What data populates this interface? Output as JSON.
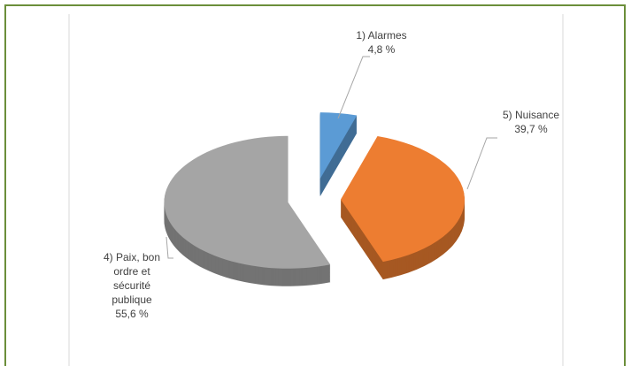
{
  "chart_data": {
    "type": "pie",
    "categories": [
      "1) Alarmes",
      "5) Nuisance",
      "4) Paix, bon ordre et sécurité publique"
    ],
    "values": [
      4.8,
      39.7,
      55.6
    ],
    "value_labels": [
      "4,8 %",
      "39,7 %",
      "55,6 %"
    ],
    "colors": [
      "#5b9bd5",
      "#ed7d31",
      "#a5a5a5"
    ]
  }
}
